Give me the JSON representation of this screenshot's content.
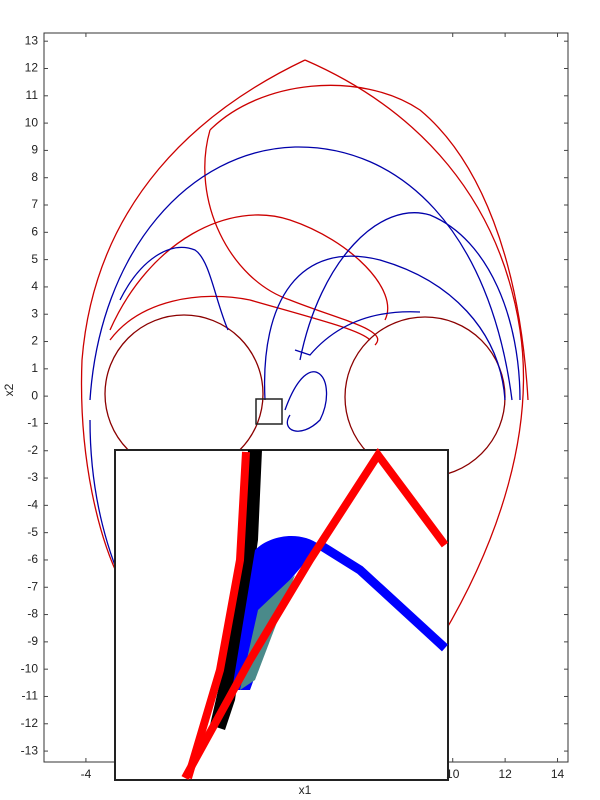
{
  "chart_data": {
    "type": "phase-plot",
    "x_label": "x1",
    "y_label": "x2",
    "xlim": [
      -5.6,
      14.4
    ],
    "ylim": [
      -13.4,
      13.3
    ],
    "xticks": [
      -4,
      10,
      12,
      14
    ],
    "yticks": [
      -13,
      -12,
      -11,
      -10,
      -9,
      -8,
      -7,
      -6,
      -5,
      -4,
      -3,
      -2,
      -1,
      0,
      1,
      2,
      3,
      4,
      5,
      6,
      7,
      8,
      9,
      10,
      11,
      12,
      13
    ]
  }
}
